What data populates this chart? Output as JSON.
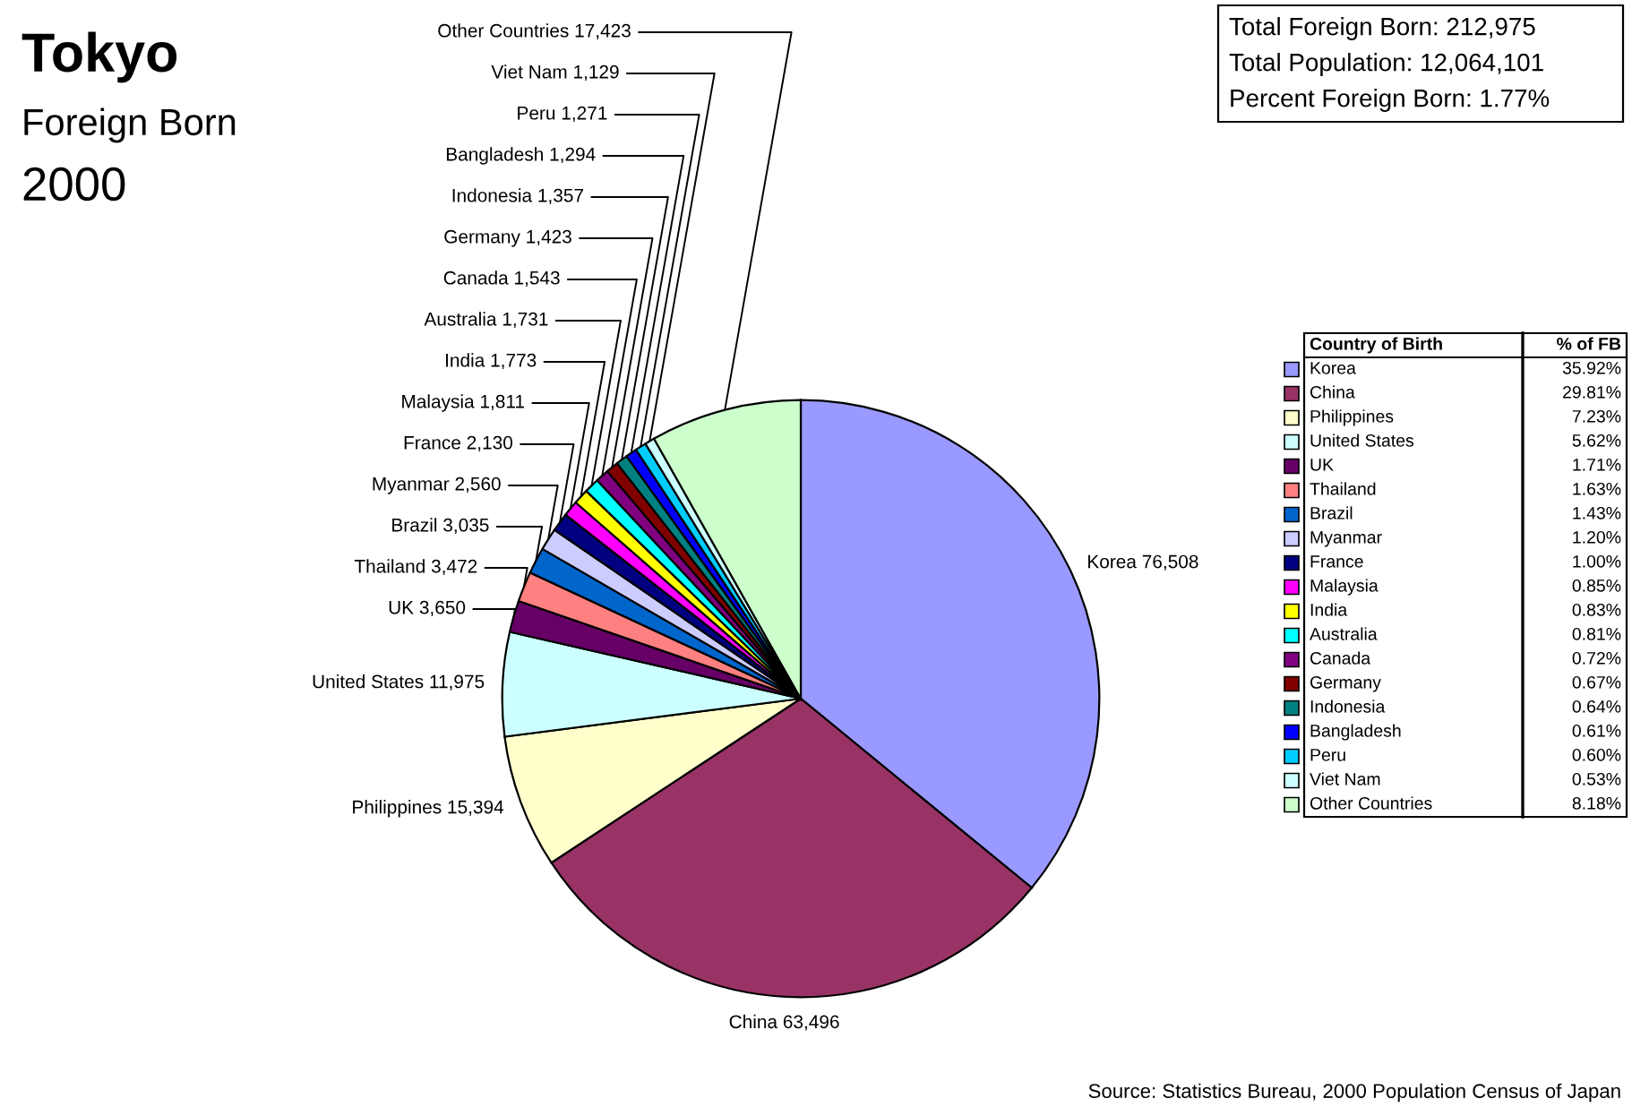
{
  "chart_data": [
    {
      "type": "pie",
      "title": "Tokyo",
      "subtitle": "Foreign Born",
      "categories": [
        "Korea",
        "China",
        "Philippines",
        "United States",
        "UK",
        "Thailand",
        "Brazil",
        "Myanmar",
        "France",
        "Malaysia",
        "India",
        "Australia",
        "Canada",
        "Germany",
        "Indonesia",
        "Bangladesh",
        "Peru",
        "Viet Nam",
        "Other Countries"
      ],
      "values": [
        76508,
        63496,
        15394,
        11975,
        3650,
        3472,
        3035,
        2560,
        2130,
        1811,
        1773,
        1731,
        1543,
        1423,
        1357,
        1294,
        1271,
        1129,
        17423
      ],
      "value_labels": [
        "76,508",
        "63,496",
        "15,394",
        "11,975",
        "3,650",
        "3,472",
        "3,035",
        "2,560",
        "2,130",
        "1,811",
        "1,773",
        "1,731",
        "1,543",
        "1,423",
        "1,357",
        "1,294",
        "1,271",
        "1,129",
        "17,423"
      ],
      "colors": [
        "#9999ff",
        "#993366",
        "#ffffcc",
        "#ccffff",
        "#660066",
        "#ff8080",
        "#0066cc",
        "#ccccff",
        "#000080",
        "#ff00ff",
        "#ffff00",
        "#00ffff",
        "#800080",
        "#800000",
        "#008080",
        "#0000ff",
        "#00ccff",
        "#ccffff",
        "#ccffcc"
      ],
      "legend": "right",
      "legend_title": "Country of Birth",
      "annotations": [
        "2000",
        "Source: Statistics Bureau, 2000 Population Census of Japan"
      ]
    },
    {
      "type": "other",
      "title": "% of FB",
      "annotations": [
        "35.92%",
        "29.81%",
        "7.23%",
        "5.62%",
        "1.71%",
        "1.63%",
        "1.43%",
        "1.20%",
        "1.00%",
        "0.85%",
        "0.83%",
        "0.81%",
        "0.72%",
        "0.67%",
        "0.64%",
        "0.61%",
        "0.60%",
        "0.53%",
        "8.18%"
      ]
    },
    {
      "type": "other",
      "annotations": [
        "Total Foreign Born: 212,975",
        "Total Population: 12,064,101",
        "Percent Foreign Born: 1.77%"
      ]
    }
  ]
}
